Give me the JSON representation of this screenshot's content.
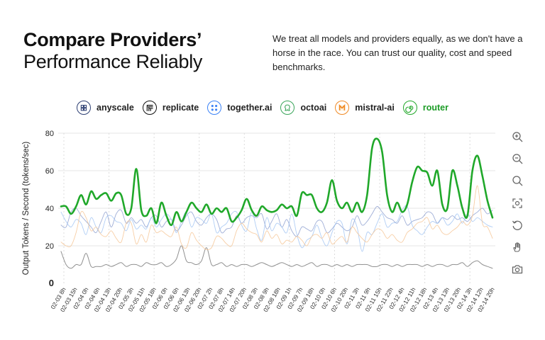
{
  "header": {
    "title_bold": "Compare Providers’",
    "title_light": "Performance Reliably",
    "description": "We treat all models and providers equally, as we don't have a horse in the race. You can trust our quality, cost and speed benchmarks."
  },
  "legend": [
    {
      "label": "anyscale",
      "color": "#2d3f73",
      "text_color": "#222222",
      "icon": "anyscale-icon"
    },
    {
      "label": "replicate",
      "color": "#111111",
      "text_color": "#222222",
      "icon": "replicate-icon"
    },
    {
      "label": "together.ai",
      "color": "#3b82f6",
      "text_color": "#222222",
      "icon": "together-ai-icon"
    },
    {
      "label": "octoai",
      "color": "#3aa55a",
      "text_color": "#222222",
      "icon": "octoai-icon"
    },
    {
      "label": "mistral-ai",
      "color": "#f08a24",
      "text_color": "#222222",
      "icon": "mistral-ai-icon"
    },
    {
      "label": "router",
      "color": "#22a82a",
      "text_color": "#1c9c26",
      "icon": "router-icon"
    }
  ],
  "toolbar": [
    {
      "name": "zoom-in-icon"
    },
    {
      "name": "zoom-out-icon"
    },
    {
      "name": "search-icon"
    },
    {
      "name": "fit-screen-icon"
    },
    {
      "name": "reset-icon"
    },
    {
      "name": "pan-hand-icon"
    },
    {
      "name": "camera-icon"
    }
  ],
  "chart_data": {
    "type": "line",
    "ylabel": "Output Tokens / Second (tokens/sec)",
    "ylim": [
      0,
      80
    ],
    "yticks": [
      0,
      20,
      40,
      60,
      80
    ],
    "grid": true,
    "x_tick_labels": [
      "02-03 8h",
      "02-03 15h",
      "02-04 0h",
      "02-04 6h",
      "02-04 13h",
      "02-04 20h",
      "02-05 3h",
      "02-05 11h",
      "02-05 18h",
      "02-06 0h",
      "02-06 6h",
      "02-06 13h",
      "02-06 20h",
      "02-07 2h",
      "02-07 8h",
      "02-07 14h",
      "02-07 20h",
      "02-08 3h",
      "02-08 9h",
      "02-08 18h",
      "02-09 1h",
      "02-09 7h",
      "02-09 18h",
      "02-10 0h",
      "02-10 6h",
      "02-10 20h",
      "02-11 3h",
      "02-11 9h",
      "02-11 15h",
      "02-11 22h",
      "02-12 4h",
      "02-12 11h",
      "02-12 18h",
      "02-13 4h",
      "02-13 13h",
      "02-13 20h",
      "02-14 3h",
      "02-14 12h",
      "02-14 20h"
    ],
    "series": [
      {
        "name": "anyscale",
        "color": "#7f93c9",
        "width": 0.9,
        "opacity": 0.75,
        "values": [
          31,
          30,
          38,
          40,
          36,
          33,
          30,
          27,
          33,
          38,
          30,
          37,
          39,
          32,
          35,
          32,
          34,
          30,
          35,
          36,
          30,
          33,
          34,
          28,
          31,
          36,
          38,
          33,
          31,
          35,
          37,
          34,
          27,
          29,
          30,
          36,
          32,
          35,
          36,
          35,
          37,
          29,
          33,
          37,
          30,
          34,
          28,
          25,
          30,
          29,
          28,
          33,
          33,
          27,
          29,
          32,
          30,
          28,
          30,
          36,
          31,
          33,
          37,
          41,
          38,
          35,
          34,
          32,
          36,
          31,
          33,
          34,
          35,
          38,
          37,
          32,
          35,
          34,
          36,
          34,
          35,
          33,
          36,
          38,
          40,
          37,
          39
        ]
      },
      {
        "name": "replicate",
        "color": "#8b8b8b",
        "width": 1.0,
        "opacity": 0.95,
        "values": [
          17,
          10,
          8,
          10,
          10,
          16,
          9,
          9,
          9,
          10,
          9,
          10,
          11,
          9,
          10,
          10,
          9,
          11,
          10,
          10,
          11,
          9,
          10,
          13,
          20,
          12,
          11,
          10,
          12,
          19,
          10,
          10,
          11,
          9,
          10,
          9,
          10,
          10,
          9,
          10,
          11,
          10,
          9,
          10,
          11,
          10,
          9,
          10,
          9,
          10,
          11,
          9,
          10,
          10,
          9,
          10,
          9,
          10,
          9,
          10,
          10,
          10,
          9,
          9,
          10,
          10,
          9,
          10,
          9,
          10,
          10,
          10,
          9,
          10,
          9,
          10,
          10,
          9,
          10,
          10,
          11,
          9,
          11,
          12,
          10,
          9,
          8
        ]
      },
      {
        "name": "together.ai",
        "color": "#9ec2f2",
        "width": 0.9,
        "opacity": 0.8,
        "values": [
          38,
          33,
          30,
          34,
          32,
          26,
          35,
          30,
          27,
          35,
          36,
          33,
          32,
          28,
          34,
          29,
          31,
          29,
          35,
          30,
          34,
          37,
          34,
          27,
          33,
          38,
          30,
          35,
          34,
          32,
          37,
          27,
          30,
          32,
          37,
          38,
          31,
          28,
          38,
          29,
          23,
          35,
          28,
          32,
          30,
          27,
          37,
          26,
          19,
          23,
          25,
          31,
          24,
          20,
          27,
          33,
          32,
          21,
          34,
          30,
          17,
          27,
          26,
          32,
          37,
          30,
          32,
          33,
          39,
          41,
          31,
          28,
          26,
          30,
          33,
          32,
          35,
          31,
          33,
          37,
          32,
          37,
          33,
          35,
          33,
          31,
          30
        ]
      },
      {
        "name": "mistral-ai",
        "color": "#f6c595",
        "width": 0.9,
        "opacity": 0.85,
        "values": [
          22,
          20,
          20,
          27,
          38,
          35,
          28,
          30,
          26,
          25,
          28,
          24,
          22,
          32,
          32,
          21,
          26,
          22,
          31,
          27,
          28,
          26,
          25,
          30,
          21,
          19,
          27,
          23,
          20,
          18,
          19,
          25,
          24,
          21,
          20,
          28,
          32,
          29,
          27,
          26,
          22,
          28,
          24,
          26,
          21,
          23,
          22,
          25,
          23,
          20,
          25,
          26,
          24,
          27,
          21,
          23,
          25,
          22,
          30,
          27,
          24,
          22,
          26,
          29,
          28,
          24,
          26,
          23,
          22,
          27,
          29,
          32,
          33,
          35,
          29,
          31,
          27,
          26,
          28,
          30,
          33,
          31,
          36,
          52,
          32,
          30,
          24
        ]
      },
      {
        "name": "router",
        "color": "#20a82a",
        "width": 2.6,
        "opacity": 1.0,
        "values": [
          41,
          41,
          37,
          41,
          47,
          42,
          49,
          45,
          47,
          48,
          44,
          48,
          47,
          37,
          40,
          61,
          39,
          36,
          40,
          32,
          43,
          36,
          31,
          38,
          33,
          38,
          43,
          40,
          38,
          42,
          37,
          40,
          38,
          40,
          33,
          35,
          39,
          45,
          39,
          36,
          41,
          39,
          38,
          39,
          42,
          40,
          41,
          36,
          48,
          47,
          47,
          40,
          38,
          43,
          55,
          44,
          40,
          43,
          38,
          43,
          38,
          47,
          72,
          77,
          70,
          47,
          38,
          43,
          38,
          42,
          54,
          62,
          60,
          59,
          52,
          60,
          42,
          40,
          60,
          52,
          40,
          36,
          60,
          68,
          57,
          44,
          35
        ]
      }
    ]
  }
}
